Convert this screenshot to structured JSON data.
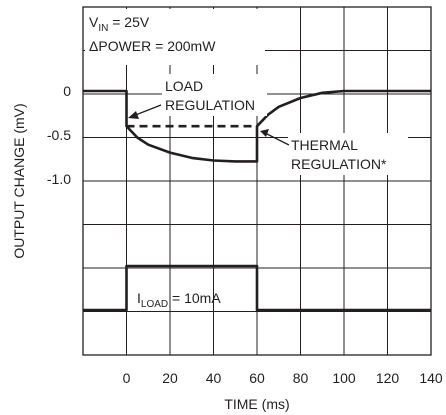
{
  "chart_data": {
    "type": "line",
    "title": "",
    "xlabel": "TIME (ms)",
    "ylabel": "OUTPUT CHANGE (mV)",
    "xlim": [
      -20,
      140
    ],
    "x_ticks": [
      "0",
      "20",
      "40",
      "60",
      "80",
      "100",
      "120",
      "140"
    ],
    "y_ticks": [
      "0",
      "-0.5",
      "-1.0"
    ],
    "grid": true,
    "conditions": {
      "vin_prefix": "V",
      "vin_sub": "IN",
      "vin_suffix": " = 25V",
      "power": "ΔPOWER = 200mW"
    },
    "annotations": {
      "load_line1": "LOAD",
      "load_line2": "REGULATION",
      "thermal_line1": "THERMAL",
      "thermal_line2": "REGULATION*",
      "iload_prefix": "I",
      "iload_sub": "LOAD",
      "iload_suffix": " = 10mA"
    },
    "series": [
      {
        "role": "output_change_mV",
        "x": [
          -20,
          0,
          0,
          5,
          10,
          20,
          30,
          40,
          50,
          60,
          60,
          65,
          70,
          80,
          90,
          100,
          120,
          140
        ],
        "y": [
          0,
          0,
          -0.4,
          -0.53,
          -0.61,
          -0.7,
          -0.76,
          -0.79,
          -0.8,
          -0.8,
          -0.4,
          -0.27,
          -0.18,
          -0.08,
          -0.02,
          0,
          0,
          0
        ]
      },
      {
        "role": "load_regulation_level_mV",
        "style": "dashed",
        "x": [
          0,
          60
        ],
        "y": [
          -0.4,
          -0.4
        ]
      },
      {
        "role": "load_current_pulse",
        "x": [
          -20,
          0,
          0,
          60,
          60,
          140
        ],
        "y": [
          0,
          0,
          10,
          10,
          0,
          0
        ]
      }
    ]
  }
}
